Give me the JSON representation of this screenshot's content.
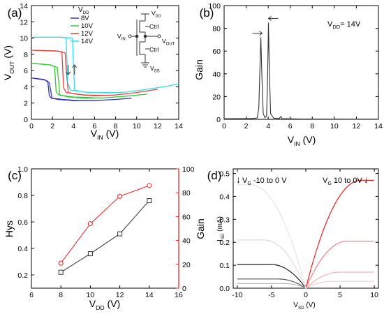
{
  "figure": {
    "panel_labels": [
      "(a)",
      "(b)",
      "(c)",
      "(d)"
    ]
  },
  "chart_data": [
    {
      "panel": "(a)",
      "type": "line",
      "xlabel": {
        "main": "V",
        "sub": "IN",
        "unit": " (V)"
      },
      "ylabel": {
        "main": "V",
        "sub": "OUT",
        "unit": " (V)"
      },
      "xlim": [
        0,
        14
      ],
      "ylim": [
        0,
        14
      ],
      "xticks": [
        0,
        2,
        4,
        6,
        8,
        10,
        12,
        14
      ],
      "yticks": [
        0,
        2,
        4,
        6,
        8,
        10,
        12,
        14
      ],
      "legend": {
        "title_main": "V",
        "title_sub": "DD",
        "position": "top-center",
        "entries": [
          "8V",
          "10V",
          "12V",
          "14V"
        ]
      },
      "series": [
        {
          "name": "8V",
          "color": "#3333cc",
          "up": [
            [
              0,
              5.1
            ],
            [
              1.2,
              4.9
            ],
            [
              1.7,
              4.5
            ],
            [
              1.85,
              3.4
            ],
            [
              1.95,
              2.6
            ],
            [
              2.5,
              2.45
            ],
            [
              4,
              2.3
            ],
            [
              6,
              2.3
            ],
            [
              8,
              2.45
            ],
            [
              9.5,
              2.6
            ]
          ],
          "down": [
            [
              0,
              5.1
            ],
            [
              1.2,
              4.85
            ],
            [
              1.55,
              4.7
            ],
            [
              1.7,
              2.9
            ],
            [
              1.9,
              2.6
            ],
            [
              3,
              2.45
            ],
            [
              4.5,
              2.3
            ],
            [
              6,
              2.3
            ]
          ]
        },
        {
          "name": "10V",
          "color": "#33cc33",
          "up": [
            [
              0,
              6.9
            ],
            [
              1.8,
              6.7
            ],
            [
              2.45,
              6.4
            ],
            [
              2.6,
              4.5
            ],
            [
              2.7,
              3.0
            ],
            [
              3.5,
              2.75
            ],
            [
              5,
              2.6
            ],
            [
              7,
              2.65
            ],
            [
              9,
              2.85
            ],
            [
              11,
              3.1
            ]
          ],
          "down": [
            [
              0,
              6.9
            ],
            [
              1.8,
              6.7
            ],
            [
              2.2,
              6.5
            ],
            [
              2.35,
              3.4
            ],
            [
              2.6,
              3.0
            ],
            [
              4,
              2.75
            ],
            [
              6,
              2.65
            ]
          ]
        },
        {
          "name": "12V",
          "color": "#e84040",
          "up": [
            [
              0,
              8.5
            ],
            [
              2.5,
              8.4
            ],
            [
              3.2,
              8.2
            ],
            [
              3.35,
              5.5
            ],
            [
              3.5,
              3.3
            ],
            [
              4.5,
              3.05
            ],
            [
              6,
              2.9
            ],
            [
              8,
              3.0
            ],
            [
              10,
              3.3
            ],
            [
              12,
              3.7
            ]
          ],
          "down": [
            [
              0,
              8.5
            ],
            [
              2.5,
              8.4
            ],
            [
              2.9,
              8.3
            ],
            [
              3.05,
              3.9
            ],
            [
              3.3,
              3.3
            ],
            [
              5,
              3.0
            ],
            [
              7,
              2.95
            ]
          ]
        },
        {
          "name": "14V",
          "color": "#33ddee",
          "up": [
            [
              0,
              10.1
            ],
            [
              2.8,
              10.1
            ],
            [
              3.9,
              10.0
            ],
            [
              4.0,
              6.5
            ],
            [
              4.1,
              3.6
            ],
            [
              5,
              3.35
            ],
            [
              7,
              3.25
            ],
            [
              9,
              3.35
            ],
            [
              11,
              3.7
            ],
            [
              13,
              4.1
            ],
            [
              14,
              4.4
            ]
          ],
          "down": [
            [
              0,
              10.1
            ],
            [
              2.8,
              10.1
            ],
            [
              3.3,
              10.05
            ],
            [
              3.45,
              4.5
            ],
            [
              3.7,
              3.6
            ],
            [
              5.5,
              3.3
            ],
            [
              8,
              3.3
            ]
          ]
        }
      ],
      "arrows": [
        {
          "x": 3.5,
          "direction": "down"
        },
        {
          "x": 4.1,
          "direction": "up"
        }
      ],
      "inset": {
        "labels": {
          "vdd_main": "V",
          "vdd_sub": "DD",
          "vin_main": "V",
          "vin_sub": "IN",
          "vout_main": "V",
          "vout_sub": "OUT",
          "vss_main": "V",
          "vss_sub": "SS",
          "ctrl1": "Ctrl",
          "ctrl2": "Ctrl"
        }
      }
    },
    {
      "panel": "(b)",
      "type": "line",
      "xlabel": {
        "main": "V",
        "sub": "IN",
        "unit": " (V)"
      },
      "ylabel": {
        "main": "Gain",
        "sub": "",
        "unit": ""
      },
      "annotation": {
        "main": "V",
        "sub": "DD",
        "rest": "= 14V"
      },
      "xlim": [
        0,
        14
      ],
      "ylim": [
        0,
        100
      ],
      "xticks": [
        0,
        2,
        4,
        6,
        8,
        10,
        12,
        14
      ],
      "yticks": [
        0,
        20,
        40,
        60,
        80,
        100
      ],
      "series": [
        {
          "name": "",
          "color": "#333333",
          "points": [
            [
              0,
              0.5
            ],
            [
              2.5,
              0.7
            ],
            [
              3.0,
              1.2
            ],
            [
              3.15,
              10
            ],
            [
              3.25,
              45
            ],
            [
              3.33,
              72
            ],
            [
              3.42,
              40
            ],
            [
              3.55,
              5
            ],
            [
              3.7,
              1.5
            ],
            [
              3.85,
              3
            ],
            [
              3.95,
              40
            ],
            [
              4.02,
              85
            ],
            [
              4.1,
              45
            ],
            [
              4.22,
              5
            ],
            [
              4.5,
              1
            ],
            [
              5.0,
              0.7
            ],
            [
              5.15,
              2.5
            ],
            [
              5.25,
              0.6
            ],
            [
              7,
              0.3
            ],
            [
              14,
              0.2
            ]
          ]
        }
      ],
      "peaks": [
        {
          "x": 3.33,
          "y": 72,
          "arrow": "right"
        },
        {
          "x": 4.02,
          "y": 85,
          "arrow": "left"
        }
      ]
    },
    {
      "panel": "(c)",
      "type": "line",
      "xlabel": {
        "main": "V",
        "sub": "DD",
        "unit": " (V)"
      },
      "ylabel": {
        "main": "Hys",
        "sub": "",
        "unit": ""
      },
      "ylabel_right": "Gain",
      "xlim": [
        6,
        16
      ],
      "ylim": [
        0.1,
        1.0
      ],
      "ylim_right": [
        0,
        100
      ],
      "xticks": [
        6,
        8,
        10,
        12,
        14,
        16
      ],
      "yticks": [
        0.2,
        0.4,
        0.6,
        0.8,
        1.0
      ],
      "yticks_right": [
        0,
        20,
        40,
        60,
        80,
        100
      ],
      "series": [
        {
          "name": "",
          "color": "#333333",
          "marker": "square",
          "axis": "left",
          "x": [
            8,
            10,
            12,
            14
          ],
          "values": [
            0.22,
            0.36,
            0.51,
            0.76
          ]
        },
        {
          "name": "",
          "color": "#ee1c1c",
          "marker": "circle",
          "axis": "right",
          "x": [
            8,
            10,
            12,
            14
          ],
          "values": [
            21,
            54,
            77,
            86
          ]
        }
      ]
    },
    {
      "panel": "(d)",
      "type": "line",
      "xlabel": {
        "main": "V",
        "sub": "SD",
        "unit": " (V)"
      },
      "ylabel": {
        "main": "I",
        "sub": "SD",
        "unit": " (mA)"
      },
      "xlim": [
        -10.6,
        10.6
      ],
      "ylim": [
        0,
        0.52
      ],
      "xticks": [
        -10,
        -5,
        0,
        5,
        10
      ],
      "yticks": [
        0.0,
        0.1,
        0.2,
        0.3,
        0.4,
        0.5
      ],
      "annotation_left": {
        "arrow": "↓",
        "main": "V",
        "sub": "G",
        "rest": " -10 to 0 V",
        "color": "#000000"
      },
      "annotation_right": {
        "main": "V",
        "sub": "G",
        "rest": " 10 to 0V",
        "arrow": "↓",
        "color": "#ee1c1c"
      },
      "series": [
        {
          "name": "",
          "color": "#ee1c1c",
          "side": "right",
          "sat": 0.47,
          "vsat": 8
        },
        {
          "name": "",
          "color": "#f07f7f",
          "side": "right",
          "sat": 0.205,
          "vsat": 6
        },
        {
          "name": "",
          "color": "#f5b0b0",
          "side": "right",
          "sat": 0.07,
          "vsat": 5
        },
        {
          "name": "",
          "color": "#f8cccc",
          "side": "right",
          "sat": 0.03,
          "vsat": 4
        },
        {
          "name": "",
          "color": "#222222",
          "side": "left",
          "sat": 0.103,
          "vsat": 5
        },
        {
          "name": "",
          "color": "#555555",
          "side": "left",
          "sat": 0.04,
          "vsat": 4
        },
        {
          "name": "",
          "color": "#bbbbbb",
          "side": "left",
          "sat": 0.02,
          "vsat": 3
        },
        {
          "name": "",
          "color": "#dddddd",
          "side": "left",
          "sat": 0.21,
          "vsat": 6
        },
        {
          "name": "",
          "color": "#e5e5e5",
          "side": "left",
          "sat": 0.45,
          "vsat": 8
        }
      ]
    }
  ]
}
